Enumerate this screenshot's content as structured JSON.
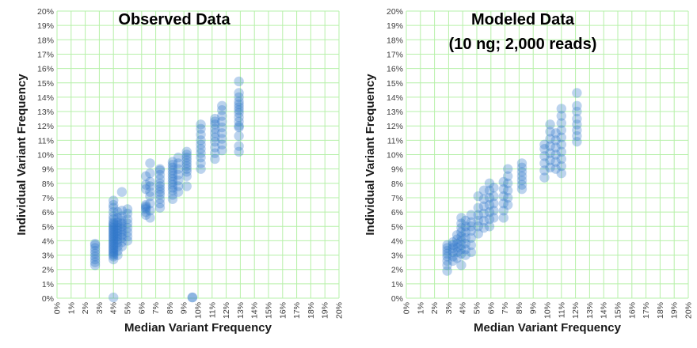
{
  "chart_data": [
    {
      "type": "scatter",
      "title": "Observed Data",
      "subtitle": "",
      "xlabel": "Median Variant Frequency",
      "ylabel": "Individual Variant Frequency",
      "xlim": [
        0,
        20
      ],
      "ylim": [
        0,
        20
      ],
      "unit": "%",
      "x_ticks": [
        "0%",
        "1%",
        "2%",
        "3%",
        "4%",
        "5%",
        "6%",
        "7%",
        "8%",
        "9%",
        "10%",
        "11%",
        "12%",
        "13%",
        "14%",
        "15%",
        "16%",
        "17%",
        "18%",
        "19%",
        "20%"
      ],
      "y_ticks": [
        "0%",
        "1%",
        "2%",
        "3%",
        "4%",
        "5%",
        "6%",
        "7%",
        "8%",
        "9%",
        "10%",
        "11%",
        "12%",
        "13%",
        "14%",
        "15%",
        "16%",
        "17%",
        "18%",
        "19%",
        "20%"
      ],
      "grid": true,
      "grid_color": "#b6f0a8",
      "marker_color": "#2e75c9",
      "series": [
        {
          "columns": [
            {
              "x": 2.7,
              "y": [
                2.3,
                2.5,
                2.7,
                2.9,
                3.1,
                3.3,
                3.5,
                3.7,
                3.8
              ]
            },
            {
              "x": 4.0,
              "y": [
                0.05,
                2.7,
                2.9,
                3.0,
                3.1,
                3.2,
                3.3,
                3.4,
                3.5,
                3.6,
                3.7,
                3.8,
                3.9,
                4.0,
                4.1,
                4.2,
                4.3,
                4.4,
                4.5,
                4.6,
                4.7,
                4.8,
                4.9,
                5.0,
                5.1,
                5.2,
                5.3,
                5.5,
                5.7,
                6.0,
                6.3,
                6.5,
                6.8
              ]
            },
            {
              "x": 4.3,
              "y": [
                3.0,
                3.3,
                3.6,
                3.9,
                4.1,
                4.3,
                4.5,
                4.7,
                4.9,
                5.1,
                5.3,
                5.6,
                6.0
              ]
            },
            {
              "x": 4.6,
              "y": [
                3.6,
                3.9,
                4.2,
                4.4,
                4.6,
                4.8,
                5.0,
                5.2,
                5.4,
                5.7,
                6.1,
                7.4
              ]
            },
            {
              "x": 5.0,
              "y": [
                4.0,
                4.3,
                4.6,
                4.9,
                5.2,
                5.5,
                5.9,
                6.2
              ]
            },
            {
              "x": 6.3,
              "y": [
                5.8,
                6.0,
                6.2,
                6.3,
                6.4,
                6.5,
                7.6,
                7.9,
                8.5
              ]
            },
            {
              "x": 6.6,
              "y": [
                5.6,
                6.1,
                6.6,
                7.1,
                7.4,
                7.8,
                8.1,
                8.7,
                9.4
              ]
            },
            {
              "x": 7.3,
              "y": [
                6.3,
                6.6,
                6.9,
                7.2,
                7.4,
                7.6,
                7.8,
                8.0,
                8.3,
                8.6,
                8.9,
                9.0
              ]
            },
            {
              "x": 8.2,
              "y": [
                6.9,
                7.2,
                7.5,
                7.7,
                7.9,
                8.1,
                8.3,
                8.5,
                8.7,
                8.9,
                9.1,
                9.3,
                9.5
              ]
            },
            {
              "x": 8.6,
              "y": [
                7.4,
                7.8,
                8.2,
                8.6,
                9.0,
                9.4,
                9.8
              ]
            },
            {
              "x": 9.2,
              "y": [
                7.8,
                8.5,
                8.8,
                9.0,
                9.2,
                9.4,
                9.6,
                9.8,
                10.0,
                10.2
              ]
            },
            {
              "x": 9.6,
              "y": [
                0.05,
                0.05
              ]
            },
            {
              "x": 10.2,
              "y": [
                9.0,
                9.4,
                9.8,
                10.1,
                10.4,
                10.7,
                11.0,
                11.4,
                11.8,
                12.1
              ]
            },
            {
              "x": 11.2,
              "y": [
                9.7,
                10.1,
                10.5,
                10.9,
                11.2,
                11.5,
                11.8,
                12.1,
                12.3,
                12.5
              ]
            },
            {
              "x": 11.7,
              "y": [
                10.3,
                10.7,
                11.1,
                11.5,
                11.9,
                12.3,
                12.7,
                13.1,
                13.4
              ]
            },
            {
              "x": 12.9,
              "y": [
                10.2,
                10.6,
                11.3,
                11.9,
                12.0,
                12.3,
                12.6,
                12.9,
                13.1,
                13.3,
                13.5,
                13.7,
                14.0,
                14.3,
                15.1
              ]
            }
          ]
        }
      ]
    },
    {
      "type": "scatter",
      "title": "Modeled Data",
      "subtitle": "(10 ng; 2,000 reads)",
      "xlabel": "Median Variant Frequency",
      "ylabel": "Individual Variant Frequency",
      "xlim": [
        0,
        20
      ],
      "ylim": [
        0,
        20
      ],
      "unit": "%",
      "x_ticks": [
        "0%",
        "1%",
        "2%",
        "3%",
        "4%",
        "5%",
        "6%",
        "7%",
        "8%",
        "9%",
        "10%",
        "11%",
        "12%",
        "13%",
        "14%",
        "15%",
        "16%",
        "17%",
        "18%",
        "19%",
        "20%"
      ],
      "y_ticks": [
        "0%",
        "1%",
        "2%",
        "3%",
        "4%",
        "5%",
        "6%",
        "7%",
        "8%",
        "9%",
        "10%",
        "11%",
        "12%",
        "13%",
        "14%",
        "15%",
        "16%",
        "17%",
        "18%",
        "19%",
        "20%"
      ],
      "grid": true,
      "grid_color": "#b6f0a8",
      "marker_color": "#2e75c9",
      "series": [
        {
          "columns": [
            {
              "x": 2.9,
              "y": [
                1.9,
                2.3,
                2.6,
                2.9,
                3.1,
                3.3,
                3.5,
                3.7
              ]
            },
            {
              "x": 3.3,
              "y": [
                2.6,
                2.9,
                3.2,
                3.5,
                3.7,
                3.9
              ]
            },
            {
              "x": 3.6,
              "y": [
                2.8,
                3.2,
                3.5,
                3.8,
                4.1,
                4.4
              ]
            },
            {
              "x": 3.9,
              "y": [
                2.3,
                3.1,
                3.4,
                3.7,
                4.0,
                4.3,
                4.6,
                4.9,
                5.2,
                5.6
              ]
            },
            {
              "x": 4.2,
              "y": [
                3.0,
                3.4,
                3.8,
                4.2,
                4.6,
                5.0,
                5.4
              ]
            },
            {
              "x": 4.6,
              "y": [
                3.2,
                3.7,
                4.2,
                4.7,
                5.0,
                5.3,
                5.8
              ]
            },
            {
              "x": 5.1,
              "y": [
                4.5,
                5.0,
                5.4,
                5.8,
                6.3,
                7.1
              ]
            },
            {
              "x": 5.5,
              "y": [
                4.9,
                5.4,
                5.9,
                6.4,
                6.9,
                7.5
              ]
            },
            {
              "x": 5.9,
              "y": [
                5.0,
                5.5,
                6.0,
                6.5,
                7.0,
                7.5,
                8.0
              ]
            },
            {
              "x": 6.2,
              "y": [
                5.6,
                6.1,
                6.6,
                7.1,
                7.7
              ]
            },
            {
              "x": 6.9,
              "y": [
                5.6,
                6.1,
                6.6,
                7.1,
                7.6,
                8.1
              ]
            },
            {
              "x": 7.2,
              "y": [
                6.5,
                7.0,
                7.5,
                8.0,
                8.5,
                9.0
              ]
            },
            {
              "x": 8.2,
              "y": [
                7.6,
                7.9,
                8.2,
                8.5,
                8.8,
                9.1,
                9.4
              ]
            },
            {
              "x": 9.8,
              "y": [
                8.4,
                8.9,
                9.4,
                9.9,
                10.4,
                10.7
              ]
            },
            {
              "x": 10.2,
              "y": [
                9.1,
                9.6,
                10.1,
                10.6,
                11.1,
                11.6,
                12.1
              ]
            },
            {
              "x": 10.6,
              "y": [
                9.0,
                9.5,
                10.0,
                10.5,
                11.0,
                11.5
              ]
            },
            {
              "x": 11.0,
              "y": [
                8.7,
                9.2,
                9.7,
                10.2,
                10.7,
                11.2,
                11.7,
                12.2,
                12.7,
                13.2
              ]
            },
            {
              "x": 12.1,
              "y": [
                10.9,
                11.3,
                11.7,
                12.1,
                12.5,
                13.0,
                13.4,
                14.3
              ]
            }
          ]
        }
      ]
    }
  ]
}
